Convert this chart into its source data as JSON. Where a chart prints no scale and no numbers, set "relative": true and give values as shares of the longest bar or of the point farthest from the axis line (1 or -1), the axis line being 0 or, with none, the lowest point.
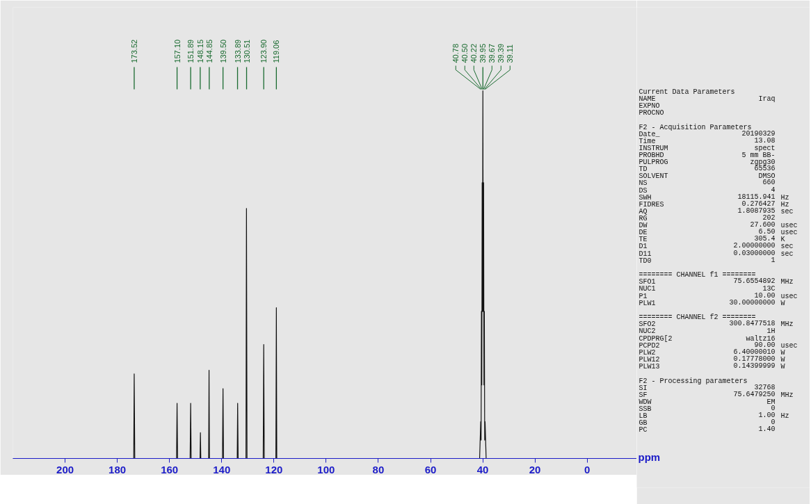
{
  "chart_data": {
    "type": "line",
    "relative": true,
    "xlabel": "ppm",
    "xlim": [
      220,
      -19
    ],
    "xticks": [
      200,
      180,
      160,
      140,
      120,
      100,
      80,
      60,
      40,
      20,
      0
    ],
    "series": [
      {
        "color": "#111111",
        "x": [
          220,
          173.7,
          173.52,
          173.3,
          157.3,
          157.1,
          156.9,
          152.1,
          151.89,
          151.7,
          148.3,
          148.15,
          148.0,
          145.0,
          144.85,
          144.7,
          139.7,
          139.5,
          139.3,
          134.05,
          133.89,
          133.7,
          130.7,
          130.51,
          130.3,
          124.1,
          123.9,
          123.7,
          119.25,
          119.06,
          118.9,
          41.2,
          40.78,
          40.64,
          40.5,
          40.36,
          40.22,
          40.08,
          39.95,
          39.81,
          39.67,
          39.53,
          39.39,
          39.25,
          39.11,
          38.7,
          -18
        ],
        "values": [
          0,
          0,
          0.23,
          0,
          0,
          0.15,
          0,
          0,
          0.15,
          0,
          0,
          0.07,
          0,
          0,
          0.24,
          0,
          0,
          0.19,
          0,
          0,
          0.15,
          0,
          0,
          0.68,
          0,
          0,
          0.31,
          0,
          0,
          0.41,
          0,
          0,
          0.1,
          0.05,
          0.4,
          0.2,
          0.75,
          0.4,
          1.0,
          0.4,
          0.75,
          0.2,
          0.4,
          0.05,
          0.1,
          0,
          0
        ]
      }
    ],
    "annotations": [
      {
        "text": "173.52",
        "x": 173.52
      },
      {
        "text": "157.10",
        "x": 157.1
      },
      {
        "text": "151.89",
        "x": 151.89
      },
      {
        "text": "148.15",
        "x": 148.15
      },
      {
        "text": "144.85",
        "x": 144.85
      },
      {
        "text": "139.50",
        "x": 139.5
      },
      {
        "text": "133.89",
        "x": 133.89
      },
      {
        "text": "130.51",
        "x": 130.51
      },
      {
        "text": "123.90",
        "x": 123.9
      },
      {
        "text": "119.06",
        "x": 119.06
      },
      {
        "text": "40.78",
        "x": 40.78
      },
      {
        "text": "40.50",
        "x": 40.5
      },
      {
        "text": "40.22",
        "x": 40.22
      },
      {
        "text": "39.95",
        "x": 39.95
      },
      {
        "text": "39.67",
        "x": 39.67
      },
      {
        "text": "39.39",
        "x": 39.39
      },
      {
        "text": "39.11",
        "x": 39.11
      },
      "Current Data Parameters",
      "NAME  Iraq",
      "EXPNO",
      "PROCNO",
      "F2 - Acquisition Parameters",
      "Date_  20190329",
      "Time  13.08",
      "INSTRUM  spect",
      "PROBHD  5 mm BB-",
      "PULPROG  zgpg30",
      "TD  65536",
      "SOLVENT  DMSO",
      "NS  660",
      "DS  4",
      "SWH  18115.941  Hz",
      "FIDRES  0.276427  Hz",
      "AQ  1.8087935  sec",
      "RG  202",
      "DW  27.600  usec",
      "DE  6.50  usec",
      "TE  305.4  K",
      "D1  2.00000000  sec",
      "D11  0.03000000  sec",
      "TD0  1",
      "======== CHANNEL f1 ========",
      "SFO1  75.6554892  MHz",
      "NUC1  13C",
      "P1  10.00  usec",
      "PLW1  30.00000000  W",
      "======== CHANNEL f2 ========",
      "SFO2  300.8477518  MHz",
      "NUC2  1H",
      "CPDPRG[2  waltz16",
      "PCPD2  90.00  usec",
      "PLW2  6.40000010  W",
      "PLW12  0.17778000  W",
      "PLW13  0.14399999  W",
      "F2 - Processing parameters",
      "SI  32768",
      "SF  75.6479250  MHz",
      "WDW  EM",
      "SSB  0",
      "LB  1.00  Hz",
      "GB  0",
      "PC  1.40"
    ]
  }
}
